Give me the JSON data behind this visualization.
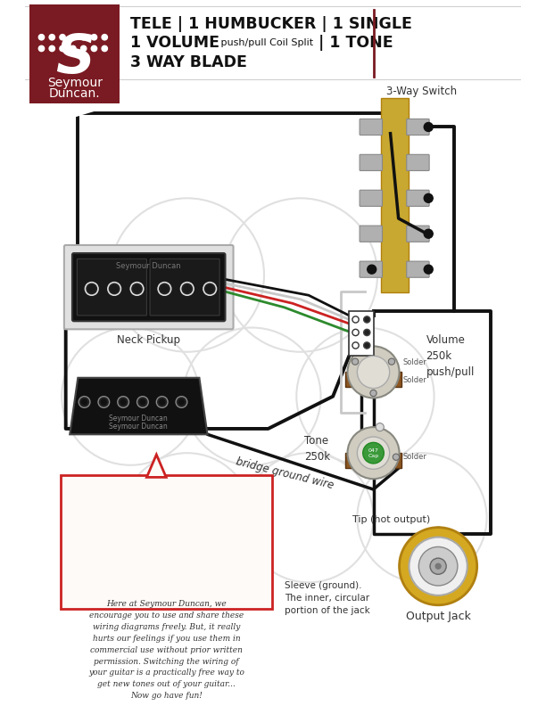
{
  "bg_color": "#ffffff",
  "sd_logo_color": "#7a1a22",
  "title1_bold": "TELE | 1 HUMBUCKER | 1 SINGLE",
  "title2_bold": "1 VOLUME",
  "title2_small": " push/pull Coil Split ",
  "title2_bold2": "| 1 TONE",
  "title3_bold": "3 WAY BLADE",
  "label_switch": "3-Way Switch",
  "label_neck": "Neck Pickup",
  "label_sd_neck": "Seymour Duncan",
  "label_volume": "Volume\n250k\npush/pull",
  "label_tone": "Tone\n250k",
  "label_solder": "Solder",
  "label_output": "Output Jack",
  "label_tip": "Tip (hot output)",
  "label_sleeve": "Sleeve (ground).\nThe inner, circular\nportion of the jack",
  "label_bridge_gnd": "bridge ground wire",
  "note_text": "Here at Seymour Duncan, we\nencourage you to use and share these\nwiring diagrams freely. But, it really\nhurts our feelings if you use them in\ncommercial use without prior written\npermission. Switching the wiring of\nyour guitar is a practically free way to\nget new tones out of your guitar...\nNow go have fun!",
  "wire_black": "#111111",
  "wire_white": "#c8c8c8",
  "wire_green": "#2d8a2d",
  "wire_red": "#cc2222",
  "switch_gold": "#c8a830",
  "switch_gold_dark": "#b08010",
  "switch_silver": "#b0b0b0",
  "pot_body": "#c0b898",
  "pot_mid": "#e0d8c8",
  "pot_knob": "#888888",
  "solder_color": "#b0b0b0",
  "watermark_color": "#eeeeee",
  "note_border": "#cc2222",
  "note_bg": "#fdfaf8"
}
